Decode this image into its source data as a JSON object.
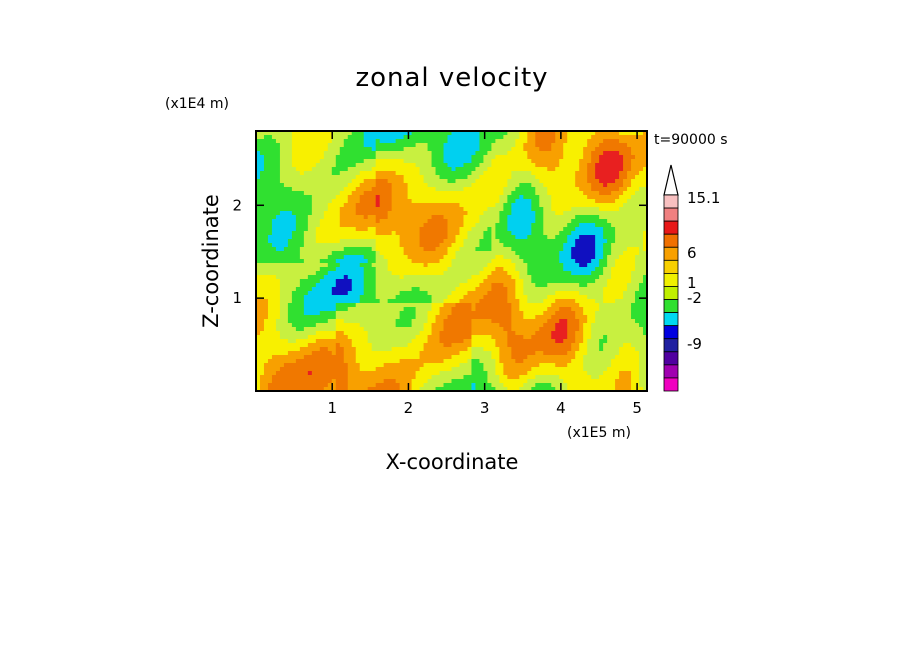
{
  "chart_data": {
    "type": "heatmap",
    "title": "zonal velocity",
    "xlabel": "X-coordinate",
    "ylabel": "Z-coordinate",
    "x_scale_note": "(x1E5 m)",
    "y_scale_note": "(x1E4 m)",
    "time_label": "t=90000 s",
    "xlim": [
      0,
      5.13
    ],
    "ylim": [
      0,
      2.8
    ],
    "x_ticks": [
      "1",
      "2",
      "3",
      "4",
      "5"
    ],
    "y_ticks": [
      "1",
      "2"
    ],
    "colorbar": {
      "levels": [
        "15.1",
        "6",
        "1",
        "-2",
        "-9"
      ],
      "colors": [
        "#f8c0c0",
        "#f08080",
        "#e81818",
        "#f07000",
        "#f8a000",
        "#f8d000",
        "#f0f000",
        "#c0f000",
        "#30e030",
        "#00d8f0",
        "#0000e0",
        "#2020a0",
        "#5000a0",
        "#a000b0",
        "#f000c0"
      ],
      "extend_top": true
    },
    "field_palette": [
      "#1010c0",
      "#00d0f0",
      "#30e030",
      "#c8f040",
      "#f8f000",
      "#f8a000",
      "#f07800",
      "#e82020"
    ]
  }
}
